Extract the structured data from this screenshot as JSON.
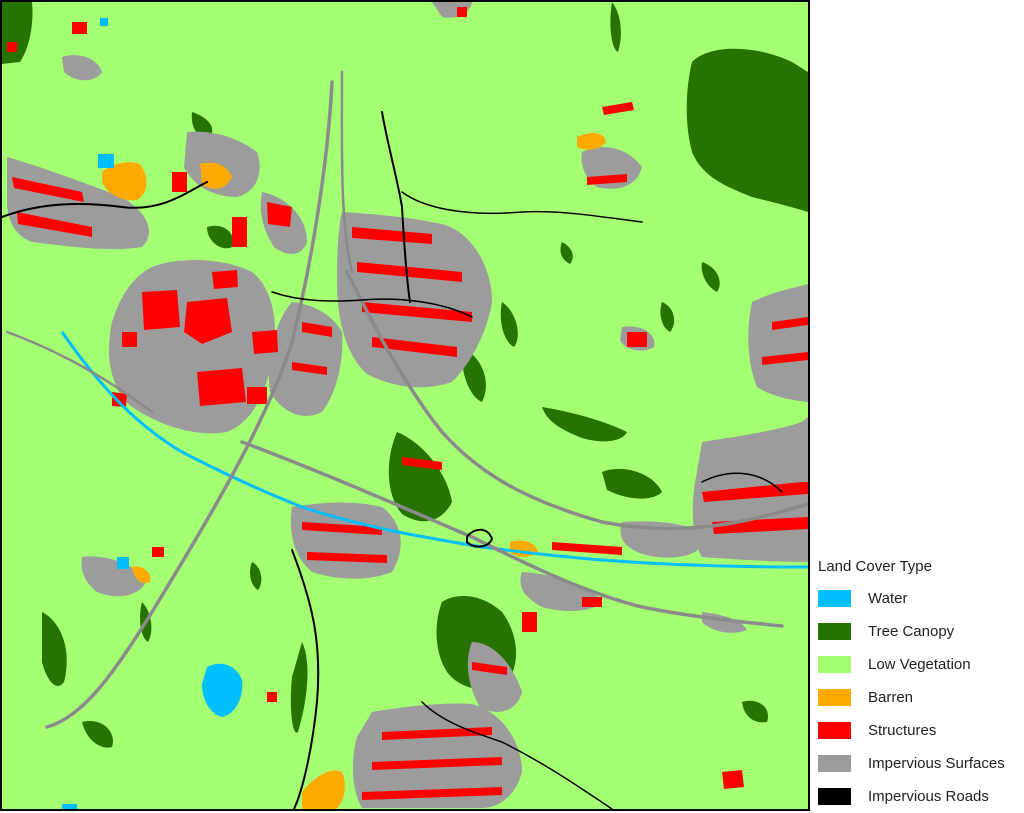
{
  "legend": {
    "title": "Land Cover Type",
    "items": [
      {
        "label": "Water",
        "color": "#00bfff"
      },
      {
        "label": "Tree Canopy",
        "color": "#267300"
      },
      {
        "label": "Low Vegetation",
        "color": "#a5ff73"
      },
      {
        "label": "Barren",
        "color": "#ffaa00"
      },
      {
        "label": "Structures",
        "color": "#ff0000"
      },
      {
        "label": "Impervious Surfaces",
        "color": "#9c9c9c"
      },
      {
        "label": "Impervious Roads",
        "color": "#000000"
      }
    ]
  }
}
